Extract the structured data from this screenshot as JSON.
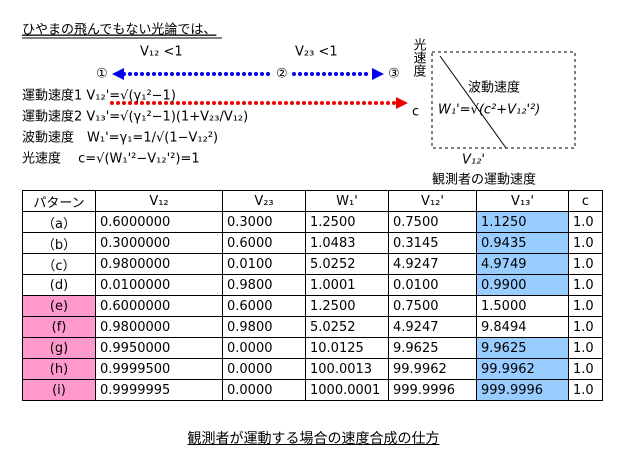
{
  "header": {
    "title": "ひやまの飛んでもない光論では、"
  },
  "diagram": {
    "v12_label": "V₁₂ <1",
    "v23_label": "V₂₃ <1",
    "point1": "①",
    "point2": "②",
    "point3": "③",
    "formulas": [
      "運動速度1 V₁₂'=√(γ₁²−1)",
      "運動速度2 V₁₃'=√(γ₁²−1)(1+V₂₃/V₁₂)",
      "波動速度　W₁'=γ₁=1/√(1−V₁₂²)",
      "光速度　 c=√(W₁'²−V₁₂'²)=1"
    ],
    "light_speed_label": "光速度",
    "c_label": "c",
    "wave_label": "波動速度",
    "wave_formula": "W₁'=√(c²+V₁₂'²)",
    "v12_prime": "V₁₂'",
    "observer_label": "観測者の運動速度"
  },
  "table": {
    "header": [
      "パターン",
      "V₁₂",
      "V₂₃",
      "W₁'",
      "V₁₂'",
      "V₁₃'",
      "c"
    ],
    "rows": [
      [
        "（a）",
        "0.6000000",
        "0.3000",
        "1.2500",
        "0.7500",
        "1.1250",
        "1.0"
      ],
      [
        "（b）",
        "0.3000000",
        "0.6000",
        "1.0483",
        "0.3145",
        "0.9435",
        "1.0"
      ],
      [
        "（c）",
        "0.9800000",
        "0.0100",
        "5.0252",
        "4.9247",
        "4.9749",
        "1.0"
      ],
      [
        "(d)",
        "0.0100000",
        "0.9800",
        "1.0001",
        "0.0100",
        "0.9900",
        "1.0"
      ],
      [
        "(e)",
        "0.6000000",
        "0.6000",
        "1.2500",
        "0.7500",
        "1.5000",
        "1.0"
      ],
      [
        "(f)",
        "0.9800000",
        "0.9800",
        "5.0252",
        "4.9247",
        "9.8494",
        "1.0"
      ],
      [
        "(g)",
        "0.9950000",
        "0.0000",
        "10.0125",
        "9.9625",
        "9.9625",
        "1.0"
      ],
      [
        "(h)",
        "0.9999500",
        "0.0000",
        "100.0013",
        "99.9962",
        "99.9962",
        "1.0"
      ],
      [
        "(i)",
        "0.9999995",
        "0.0000",
        "1000.0001",
        "999.9996",
        "999.9996",
        "1.0"
      ]
    ]
  },
  "caption": "観測者が運動する場合の速度合成の仕方"
}
